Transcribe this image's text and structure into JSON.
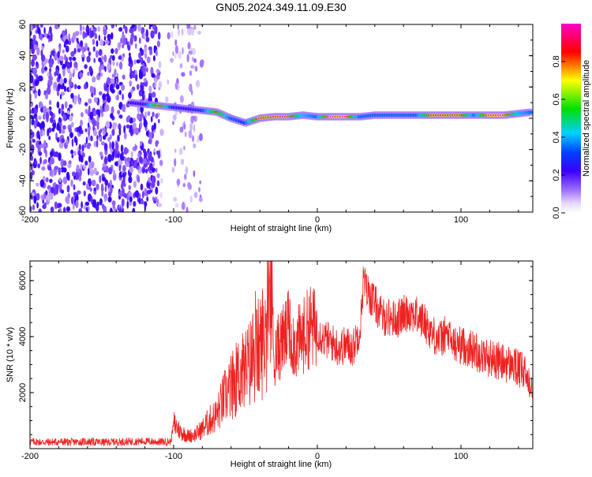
{
  "page": {
    "title": "GN05.2024.349.11.09.E30"
  },
  "colors": {
    "snr_line": "#ee2222",
    "frame": "#000000",
    "colormap": [
      "#9a6cff",
      "#3a00ff",
      "#0044ff",
      "#00c8ff",
      "#00e060",
      "#ffff00",
      "#ff0000",
      "#ff00aa"
    ]
  },
  "chart_data": [
    {
      "type": "heatmap",
      "title": "GN05.2024.349.11.09.E30",
      "xlabel": "Height of straight line (km)",
      "ylabel": "Frequency (Hz)",
      "xlim": [
        -200,
        150
      ],
      "ylim": [
        -60,
        60
      ],
      "xticks": [
        -200,
        -100,
        0,
        100
      ],
      "xtick_labels": [
        "-200",
        "-100",
        "0",
        "100"
      ],
      "yticks": [
        -60,
        -40,
        -20,
        0,
        20,
        40,
        60
      ],
      "ytick_labels": [
        "-60",
        "-40",
        "-20",
        "0",
        "20",
        "40",
        "60"
      ],
      "colorbar": {
        "label": "Normalized spectral amplitude",
        "range": [
          0,
          1
        ],
        "ticks": [
          0.0,
          0.2,
          0.4,
          0.6,
          0.8
        ],
        "tick_labels": [
          "0.0",
          "0.2",
          "0.4",
          "0.6",
          "0.8"
        ]
      },
      "ridge": {
        "description_free": true,
        "x": [
          -130,
          -120,
          -110,
          -100,
          -90,
          -80,
          -70,
          -60,
          -50,
          -40,
          -30,
          -20,
          -10,
          0,
          10,
          20,
          30,
          40,
          50,
          60,
          70,
          80,
          90,
          100,
          110,
          120,
          130,
          140,
          150
        ],
        "y": [
          10,
          9,
          8,
          7,
          6,
          5,
          4,
          0,
          -3,
          0,
          1,
          1,
          2,
          1,
          1,
          1,
          1,
          2,
          2,
          2,
          2,
          2,
          2,
          2,
          2,
          2,
          2,
          3,
          4
        ],
        "amplitude": [
          0.3,
          0.35,
          0.9,
          0.4,
          0.35,
          0.4,
          0.85,
          0.5,
          0.45,
          0.95,
          0.95,
          0.95,
          0.6,
          0.5,
          1.0,
          1.0,
          0.5,
          0.5,
          0.5,
          0.5,
          0.5,
          0.95,
          0.95,
          0.95,
          0.5,
          1.0,
          1.0,
          0.6,
          0.5
        ]
      },
      "noise_region_x": [
        -200,
        -80
      ]
    },
    {
      "type": "line",
      "xlabel": "Height of straight line (km)",
      "ylabel": "SNR (10 * v/v)",
      "xlim": [
        -200,
        150
      ],
      "ylim": [
        0,
        6700
      ],
      "xticks": [
        -200,
        -100,
        0,
        100
      ],
      "xtick_labels": [
        "-200",
        "-100",
        "0",
        "100"
      ],
      "yticks": [
        2000,
        4000,
        6000
      ],
      "ytick_labels": [
        "2000",
        "4000",
        "6000"
      ],
      "series": [
        {
          "x": [
            -200,
            -190,
            -180,
            -170,
            -160,
            -150,
            -140,
            -130,
            -120,
            -110,
            -102,
            -100,
            -95,
            -90,
            -85,
            -80,
            -75,
            -70,
            -65,
            -60,
            -55,
            -50,
            -45,
            -40,
            -35,
            -32,
            -30,
            -25,
            -20,
            -15,
            -10,
            -5,
            0,
            5,
            10,
            15,
            20,
            25,
            30,
            32,
            35,
            40,
            45,
            50,
            55,
            60,
            65,
            70,
            75,
            80,
            85,
            90,
            95,
            100,
            105,
            110,
            115,
            120,
            125,
            130,
            135,
            140,
            145,
            150
          ],
          "y": [
            250,
            230,
            240,
            230,
            250,
            220,
            240,
            250,
            260,
            240,
            250,
            900,
            600,
            450,
            500,
            700,
            1000,
            1200,
            1800,
            2200,
            2600,
            2800,
            3200,
            3600,
            4300,
            5800,
            3300,
            3800,
            4200,
            3700,
            4000,
            4400,
            4200,
            3900,
            3800,
            3600,
            3700,
            3600,
            4400,
            6000,
            5600,
            5200,
            4700,
            4700,
            4600,
            4800,
            4900,
            4700,
            4500,
            4100,
            3900,
            4100,
            3700,
            3700,
            3600,
            3500,
            3300,
            3250,
            3150,
            3050,
            3000,
            2850,
            2650,
            2300
          ]
        }
      ]
    }
  ]
}
